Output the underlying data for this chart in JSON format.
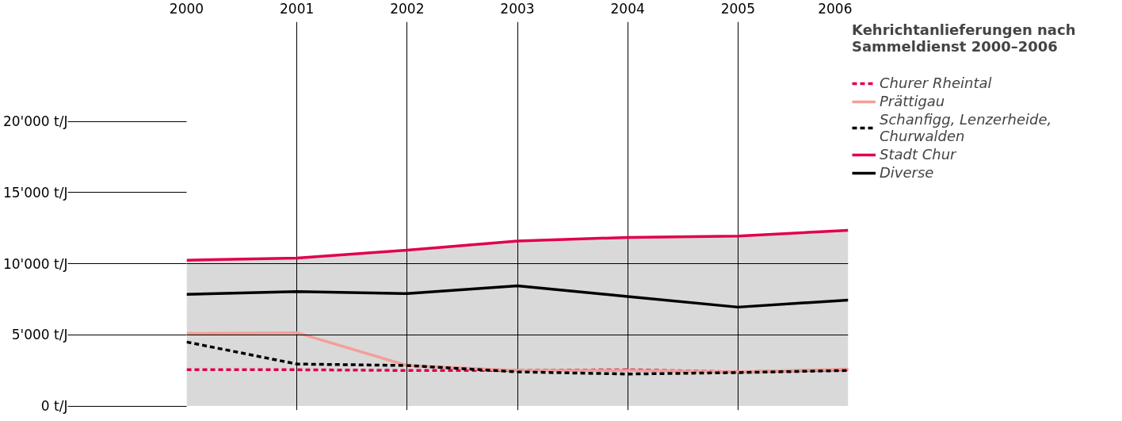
{
  "chart_data": {
    "type": "line",
    "title": "Kehrichtanlieferungen nach Sammeldienst 2000–2006",
    "x": [
      2000,
      2001,
      2002,
      2003,
      2004,
      2005,
      2006
    ],
    "xlim": [
      2000,
      2006
    ],
    "xticks": [
      2000,
      2001,
      2002,
      2003,
      2004,
      2005,
      2006
    ],
    "ylim": [
      -300,
      27000
    ],
    "yticks": [
      {
        "value": 0,
        "label": "0 t/J"
      },
      {
        "value": 5000,
        "label": "5'000 t/J"
      },
      {
        "value": 10000,
        "label": "10'000 t/J"
      },
      {
        "value": 15000,
        "label": "15'000 t/J"
      },
      {
        "value": 20000,
        "label": "20'000 t/J"
      }
    ],
    "grid": true,
    "legend": "right",
    "series": [
      {
        "name": "Churer Rheintal",
        "color": "#e0004d",
        "line_style": "dashed",
        "values": [
          2550,
          2550,
          2500,
          2500,
          2550,
          2400,
          2550
        ]
      },
      {
        "name": "Prättigau",
        "color": "#f2a098",
        "values": [
          5100,
          5150,
          2850,
          2500,
          2500,
          2400,
          2600
        ]
      },
      {
        "name": "Schanfigg, Lenzerheide, Churwalden",
        "color": "#000000",
        "line_style": "dashed",
        "values": [
          4500,
          2950,
          2850,
          2400,
          2250,
          2350,
          2500
        ]
      },
      {
        "name": "Stadt Chur",
        "type": "area",
        "color": "#e0004d",
        "values": [
          10250,
          10400,
          10950,
          11600,
          11850,
          11950,
          12350
        ]
      },
      {
        "name": "Diverse",
        "color": "#000000",
        "values": [
          7850,
          8050,
          7900,
          8450,
          7700,
          6950,
          7450
        ]
      }
    ]
  }
}
